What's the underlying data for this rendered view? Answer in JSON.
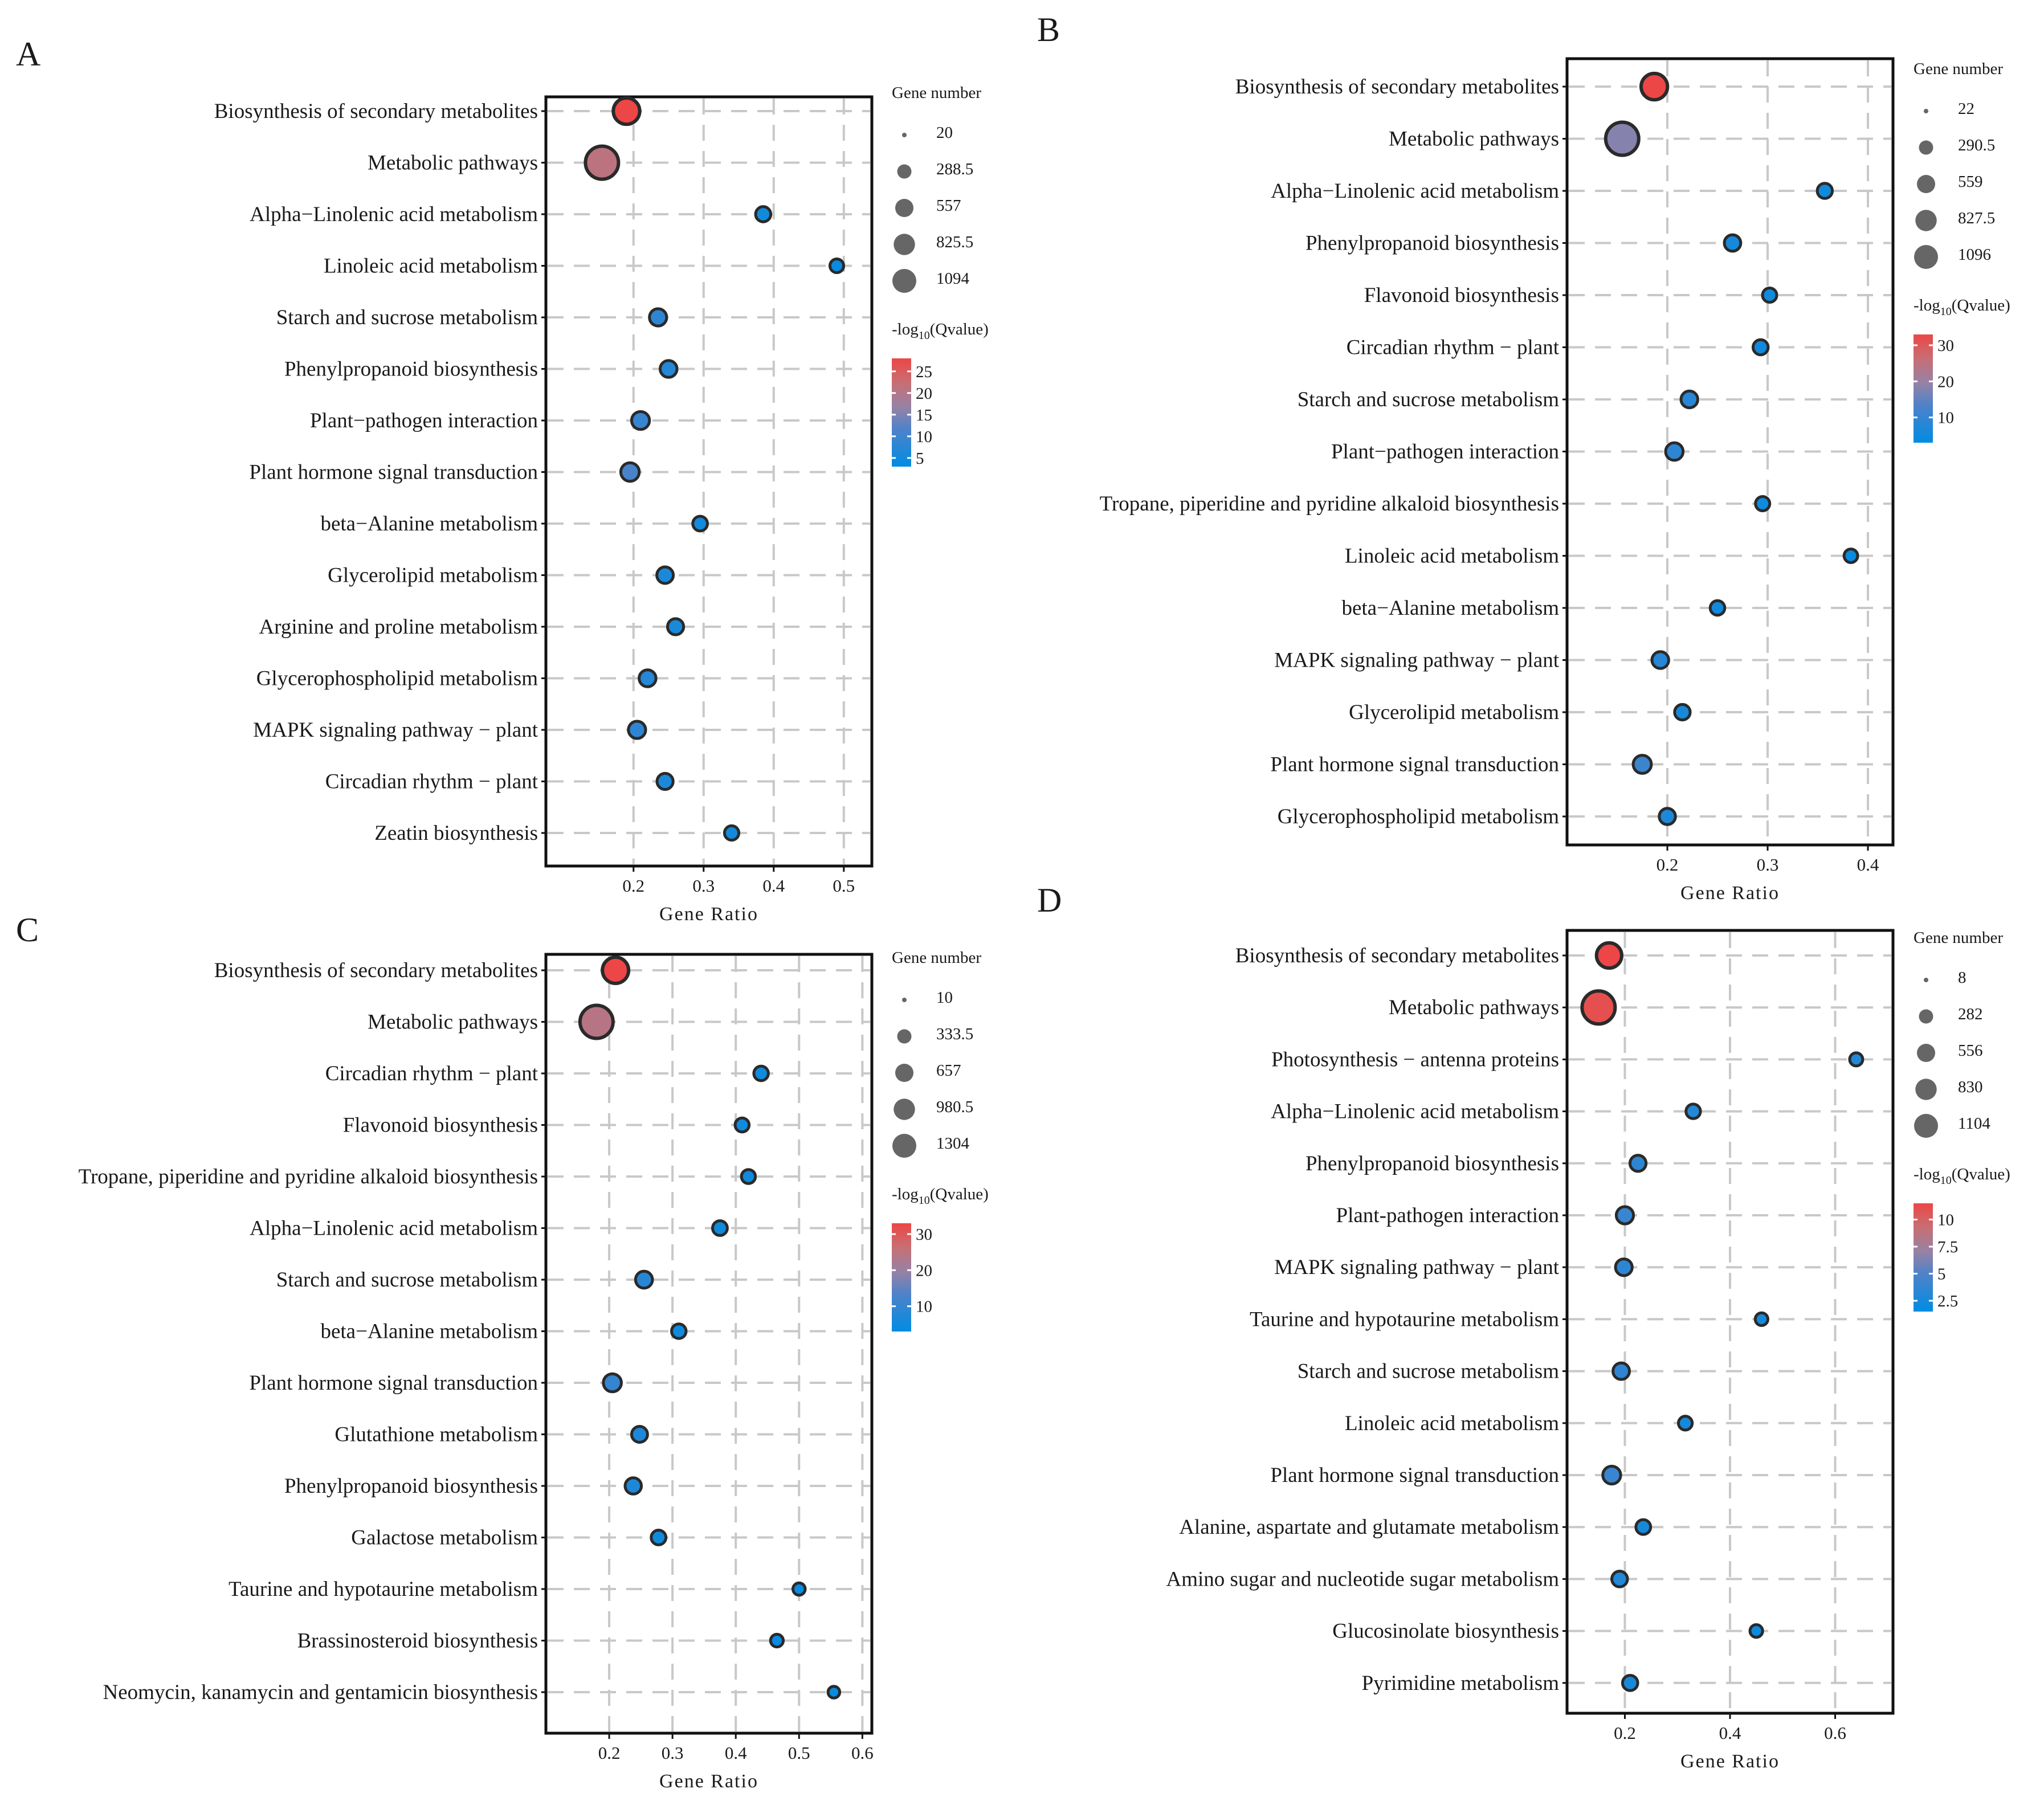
{
  "chart_data": [
    {
      "panel": "A",
      "type": "scatter",
      "xlabel": "Gene Ratio",
      "xlim": [
        0.075,
        0.54
      ],
      "xticks": [
        0.2,
        0.3,
        0.4,
        0.5
      ],
      "xtick_labels": [
        "0.2",
        "0.3",
        "0.4",
        "0.5"
      ],
      "size_legend": {
        "title": "Gene number",
        "range": [
          20,
          1094
        ],
        "entries": [
          "20",
          "288.5",
          "557",
          "825.5",
          "1094"
        ]
      },
      "color_legend": {
        "title_prefix": "-log",
        "title_sub": "10",
        "title_suffix": "(Qvalue)",
        "range": [
          3,
          28
        ],
        "ticks": [
          25,
          20,
          15,
          10,
          5
        ],
        "tick_labels": [
          "25",
          "20",
          "15",
          "10",
          "5"
        ]
      },
      "grid": true,
      "points": [
        {
          "term": "Biosynthesis of secondary metabolites",
          "ratio": 0.19,
          "genes": 560,
          "q": 28
        },
        {
          "term": "Metabolic pathways",
          "ratio": 0.155,
          "genes": 1094,
          "q": 21
        },
        {
          "term": "Alpha−Linolenic acid metabolism",
          "ratio": 0.385,
          "genes": 70,
          "q": 5
        },
        {
          "term": "Linoleic acid metabolism",
          "ratio": 0.49,
          "genes": 45,
          "q": 4
        },
        {
          "term": "Starch and sucrose metabolism",
          "ratio": 0.235,
          "genes": 120,
          "q": 8
        },
        {
          "term": "Phenylpropanoid biosynthesis",
          "ratio": 0.25,
          "genes": 110,
          "q": 7
        },
        {
          "term": "Plant−pathogen interaction",
          "ratio": 0.21,
          "genes": 140,
          "q": 9
        },
        {
          "term": "Plant hormone signal transduction",
          "ratio": 0.195,
          "genes": 160,
          "q": 11
        },
        {
          "term": "beta−Alanine metabolism",
          "ratio": 0.295,
          "genes": 60,
          "q": 5
        },
        {
          "term": "Glycerolipid metabolism",
          "ratio": 0.245,
          "genes": 100,
          "q": 6
        },
        {
          "term": "Arginine and proline metabolism",
          "ratio": 0.26,
          "genes": 90,
          "q": 6
        },
        {
          "term": "Glycerophospholipid metabolism",
          "ratio": 0.22,
          "genes": 110,
          "q": 7
        },
        {
          "term": "MAPK signaling pathway − plant",
          "ratio": 0.205,
          "genes": 120,
          "q": 8
        },
        {
          "term": "Circadian rhythm − plant",
          "ratio": 0.245,
          "genes": 90,
          "q": 6
        },
        {
          "term": "Zeatin biosynthesis",
          "ratio": 0.34,
          "genes": 55,
          "q": 5
        }
      ]
    },
    {
      "panel": "B",
      "type": "scatter",
      "xlabel": "Gene Ratio",
      "xlim": [
        0.1,
        0.425
      ],
      "xticks": [
        0.2,
        0.3,
        0.4
      ],
      "xtick_labels": [
        "0.2",
        "0.3",
        "0.4"
      ],
      "size_legend": {
        "title": "Gene number",
        "range": [
          22,
          1096
        ],
        "entries": [
          "22",
          "290.5",
          "559",
          "827.5",
          "1096"
        ]
      },
      "color_legend": {
        "title_prefix": "-log",
        "title_sub": "10",
        "title_suffix": "(Qvalue)",
        "range": [
          3,
          33
        ],
        "ticks": [
          30,
          20,
          10
        ],
        "tick_labels": [
          "30",
          "20",
          "10"
        ]
      },
      "grid": true,
      "points": [
        {
          "term": "Biosynthesis of secondary metabolites",
          "ratio": 0.187,
          "genes": 560,
          "q": 33
        },
        {
          "term": "Metabolic pathways",
          "ratio": 0.155,
          "genes": 1096,
          "q": 18
        },
        {
          "term": "Alpha−Linolenic acid metabolism",
          "ratio": 0.357,
          "genes": 70,
          "q": 5
        },
        {
          "term": "Phenylpropanoid biosynthesis",
          "ratio": 0.265,
          "genes": 100,
          "q": 6
        },
        {
          "term": "Flavonoid biosynthesis",
          "ratio": 0.302,
          "genes": 55,
          "q": 5
        },
        {
          "term": "Circadian rhythm − plant",
          "ratio": 0.293,
          "genes": 70,
          "q": 5
        },
        {
          "term": "Starch and sucrose metabolism",
          "ratio": 0.222,
          "genes": 110,
          "q": 8
        },
        {
          "term": "Plant−pathogen interaction",
          "ratio": 0.207,
          "genes": 130,
          "q": 9
        },
        {
          "term": "Tropane, piperidine and pyridine alkaloid biosynthesis",
          "ratio": 0.295,
          "genes": 55,
          "q": 5
        },
        {
          "term": "Linoleic acid metabolism",
          "ratio": 0.383,
          "genes": 45,
          "q": 4
        },
        {
          "term": "beta−Alanine metabolism",
          "ratio": 0.25,
          "genes": 60,
          "q": 5
        },
        {
          "term": "MAPK signaling pathway − plant",
          "ratio": 0.193,
          "genes": 110,
          "q": 8
        },
        {
          "term": "Glycerolipid metabolism",
          "ratio": 0.215,
          "genes": 80,
          "q": 6
        },
        {
          "term": "Plant hormone signal transduction",
          "ratio": 0.175,
          "genes": 150,
          "q": 11
        },
        {
          "term": "Glycerophospholipid metabolism",
          "ratio": 0.2,
          "genes": 95,
          "q": 7
        }
      ]
    },
    {
      "panel": "C",
      "type": "scatter",
      "xlabel": "Gene Ratio",
      "xlim": [
        0.1,
        0.615
      ],
      "xticks": [
        0.2,
        0.3,
        0.4,
        0.5,
        0.6
      ],
      "xtick_labels": [
        "0.2",
        "0.3",
        "0.4",
        "0.5",
        "0.6"
      ],
      "size_legend": {
        "title": "Gene number",
        "range": [
          10,
          1304
        ],
        "entries": [
          "10",
          "333.5",
          "657",
          "980.5",
          "1304"
        ]
      },
      "color_legend": {
        "title_prefix": "-log",
        "title_sub": "10",
        "title_suffix": "(Qvalue)",
        "range": [
          3,
          33
        ],
        "ticks": [
          30,
          20,
          10
        ],
        "tick_labels": [
          "30",
          "20",
          "10"
        ]
      },
      "grid": true,
      "points": [
        {
          "term": "Biosynthesis of secondary metabolites",
          "ratio": 0.21,
          "genes": 640,
          "q": 33
        },
        {
          "term": "Metabolic pathways",
          "ratio": 0.18,
          "genes": 1304,
          "q": 24
        },
        {
          "term": "Circadian rhythm − plant",
          "ratio": 0.44,
          "genes": 55,
          "q": 5
        },
        {
          "term": "Flavonoid biosynthesis",
          "ratio": 0.41,
          "genes": 45,
          "q": 5
        },
        {
          "term": "Tropane, piperidine and pyridine alkaloid biosynthesis",
          "ratio": 0.42,
          "genes": 45,
          "q": 5
        },
        {
          "term": "Alpha−Linolenic acid metabolism",
          "ratio": 0.375,
          "genes": 60,
          "q": 5
        },
        {
          "term": "Starch and sucrose metabolism",
          "ratio": 0.255,
          "genes": 120,
          "q": 8
        },
        {
          "term": "beta−Alanine metabolism",
          "ratio": 0.31,
          "genes": 55,
          "q": 5
        },
        {
          "term": "Plant hormone signal transduction",
          "ratio": 0.205,
          "genes": 160,
          "q": 10
        },
        {
          "term": "Glutathione metabolism",
          "ratio": 0.248,
          "genes": 90,
          "q": 7
        },
        {
          "term": "Phenylpropanoid biosynthesis",
          "ratio": 0.238,
          "genes": 100,
          "q": 7
        },
        {
          "term": "Galactose metabolism",
          "ratio": 0.278,
          "genes": 60,
          "q": 5
        },
        {
          "term": "Taurine and hypotaurine metabolism",
          "ratio": 0.5,
          "genes": 20,
          "q": 4
        },
        {
          "term": "Brassinosteroid biosynthesis",
          "ratio": 0.465,
          "genes": 25,
          "q": 4
        },
        {
          "term": "Neomycin, kanamycin and gentamicin biosynthesis",
          "ratio": 0.555,
          "genes": 15,
          "q": 4
        }
      ]
    },
    {
      "panel": "D",
      "type": "scatter",
      "xlabel": "Gene Ratio",
      "xlim": [
        0.09,
        0.71
      ],
      "xticks": [
        0.2,
        0.4,
        0.6
      ],
      "xtick_labels": [
        "0.2",
        "0.4",
        "0.6"
      ],
      "size_legend": {
        "title": "Gene number",
        "range": [
          8,
          1104
        ],
        "entries": [
          "8",
          "282",
          "556",
          "830",
          "1104"
        ]
      },
      "color_legend": {
        "title_prefix": "-log",
        "title_sub": "10",
        "title_suffix": "(Qvalue)",
        "range": [
          1.5,
          11.5
        ],
        "ticks": [
          10,
          7.5,
          5,
          2.5
        ],
        "tick_labels": [
          "10",
          "7.5",
          "5",
          "2.5"
        ]
      },
      "grid": true,
      "points": [
        {
          "term": "Biosynthesis of secondary metabolites",
          "ratio": 0.17,
          "genes": 480,
          "q": 11.5
        },
        {
          "term": "Metabolic pathways",
          "ratio": 0.15,
          "genes": 1104,
          "q": 11
        },
        {
          "term": "Photosynthesis − antenna proteins",
          "ratio": 0.64,
          "genes": 25,
          "q": 3
        },
        {
          "term": "Alpha−Linolenic acid metabolism",
          "ratio": 0.33,
          "genes": 45,
          "q": 3
        },
        {
          "term": "Phenylpropanoid biosynthesis",
          "ratio": 0.225,
          "genes": 80,
          "q": 3.5
        },
        {
          "term": "Plant-pathogen interaction",
          "ratio": 0.2,
          "genes": 110,
          "q": 4
        },
        {
          "term": "MAPK signaling pathway − plant",
          "ratio": 0.198,
          "genes": 95,
          "q": 3.5
        },
        {
          "term": "Taurine and hypotaurine metabolism",
          "ratio": 0.46,
          "genes": 20,
          "q": 2.5
        },
        {
          "term": "Starch and sucrose metabolism",
          "ratio": 0.193,
          "genes": 90,
          "q": 3.5
        },
        {
          "term": "Linoleic acid metabolism",
          "ratio": 0.315,
          "genes": 35,
          "q": 2.5
        },
        {
          "term": "Plant hormone signal transduction",
          "ratio": 0.175,
          "genes": 130,
          "q": 4
        },
        {
          "term": "Alanine, aspartate and glutamate metabolism",
          "ratio": 0.235,
          "genes": 50,
          "q": 2.5
        },
        {
          "term": "Amino sugar and nucleotide sugar metabolism",
          "ratio": 0.19,
          "genes": 70,
          "q": 3
        },
        {
          "term": "Glucosinolate biosynthesis",
          "ratio": 0.45,
          "genes": 20,
          "q": 2
        },
        {
          "term": "Pyrimidine metabolism",
          "ratio": 0.21,
          "genes": 60,
          "q": 2.5
        }
      ]
    }
  ]
}
